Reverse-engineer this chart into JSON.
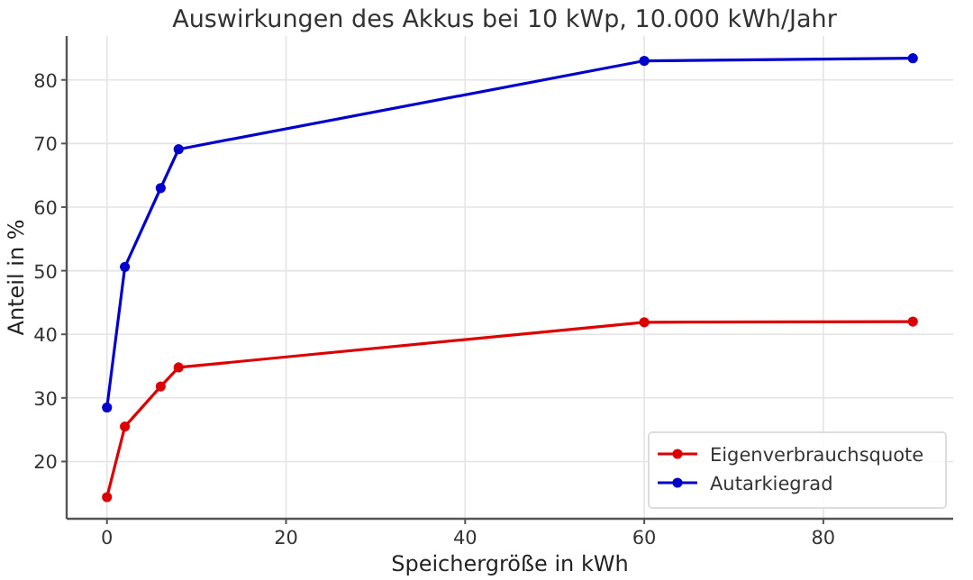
{
  "chart_data": {
    "type": "line",
    "title": "Auswirkungen des Akkus bei 10 kWp, 10.000 kWh/Jahr",
    "xlabel": "Speichergröße in kWh",
    "ylabel": "Anteil in %",
    "x": [
      0,
      2,
      6,
      8,
      60,
      90
    ],
    "series": [
      {
        "name": "Eigenverbrauchsquote",
        "color": "#dd0000",
        "values": [
          14.4,
          25.5,
          31.8,
          34.8,
          41.9,
          42.0
        ]
      },
      {
        "name": "Autarkiegrad",
        "color": "#0000cc",
        "values": [
          28.5,
          50.6,
          63.0,
          69.1,
          83.0,
          83.4
        ]
      }
    ],
    "xlim": [
      -4.5,
      94.5
    ],
    "xticks": [
      0,
      20,
      40,
      60,
      80
    ],
    "ylim": [
      11,
      86.9
    ],
    "yticks": [
      20,
      30,
      40,
      50,
      60,
      70,
      80
    ],
    "grid": true,
    "legend": "bottom right",
    "marker": "circle",
    "line_style": "solid"
  }
}
